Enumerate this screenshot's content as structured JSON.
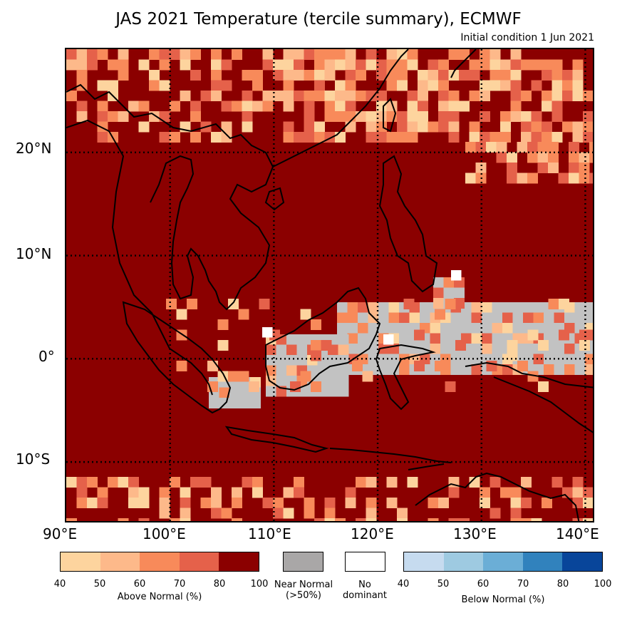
{
  "title": "JAS 2021 Temperature (tercile summary), ECMWF",
  "subtitle": "Initial condition 1 Jun 2021",
  "map": {
    "lon_range": [
      90,
      141
    ],
    "lat_range": [
      -16,
      30
    ],
    "lat_labels": [
      "20°N",
      "10°N",
      "0°",
      "10°S"
    ],
    "lon_labels": [
      "90°E",
      "100°E",
      "110°E",
      "120°E",
      "130°E",
      "140°E"
    ],
    "dominant_category": "Above Normal 80-100%",
    "colors": {
      "ocean_default": "#8b0000",
      "above_40": "#fdd49e",
      "above_50": "#fdb98a",
      "above_60": "#f88a5a",
      "above_70": "#e5614a",
      "above_80": "#8b0000",
      "near_normal": "#c2c2c2",
      "no_dominant": "#ffffff"
    }
  },
  "legend": {
    "above": {
      "ticks": [
        "40",
        "50",
        "60",
        "70",
        "80",
        "100"
      ],
      "caption": "Above Normal (%)",
      "colors": [
        "#fdd49e",
        "#fdb98a",
        "#f88a5a",
        "#e5614a",
        "#8b0000"
      ]
    },
    "near_normal": {
      "caption_line1": "Near Normal",
      "caption_line2": "(>50%)",
      "color": "#a9a7a7"
    },
    "no_dominant": {
      "caption_line1": "No",
      "caption_line2": "dominant",
      "color": "#ffffff"
    },
    "below": {
      "ticks": [
        "40",
        "50",
        "60",
        "70",
        "80",
        "100"
      ],
      "caption": "Below Normal (%)",
      "colors": [
        "#c6dbef",
        "#9ecae1",
        "#6baed6",
        "#3182bd",
        "#08459a"
      ]
    }
  }
}
